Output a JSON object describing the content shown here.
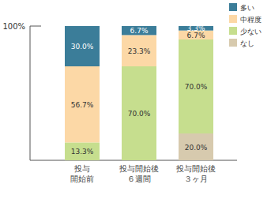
{
  "chart_data": {
    "type": "bar",
    "stacked": true,
    "data_labels": true,
    "legend": "top-right",
    "categories": [
      "投与\n開始前",
      "投与開始後\n６週間",
      "投与開始後\n３ヶ月"
    ],
    "series": [
      {
        "name": "多い",
        "color": "#3b7d99",
        "values": [
          30.0,
          6.7,
          3.3
        ],
        "value_labels": [
          "30.0%",
          "6.7%",
          "3.3%"
        ]
      },
      {
        "name": "中程度",
        "color": "#fcd8a6",
        "values": [
          56.7,
          23.3,
          6.7
        ],
        "value_labels": [
          "56.7%",
          "23.3%",
          "6.7%"
        ]
      },
      {
        "name": "少ない",
        "color": "#c6de8e",
        "values": [
          13.3,
          70.0,
          70.0
        ],
        "value_labels": [
          "13.3%",
          "70.0%",
          "70.0%"
        ]
      },
      {
        "name": "なし",
        "color": "#d7caae",
        "values": [
          0,
          0,
          20.0
        ],
        "value_labels": [
          null,
          null,
          "20.0%"
        ]
      }
    ],
    "ylim": [
      0,
      100
    ],
    "yticks": [
      {
        "value": 100,
        "label": "100%"
      }
    ]
  }
}
